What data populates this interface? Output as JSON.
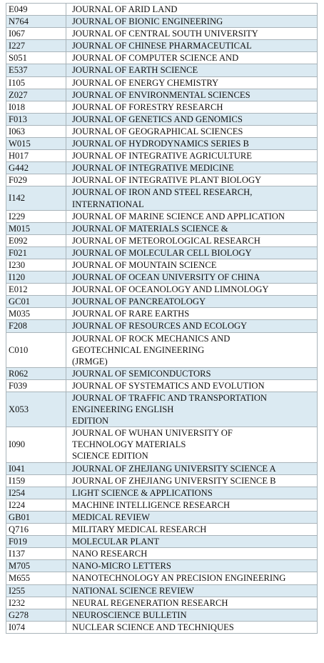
{
  "table": {
    "rows": [
      {
        "code": "E049",
        "lines": [
          "JOURNAL OF ARID LAND"
        ]
      },
      {
        "code": "N764",
        "lines": [
          "JOURNAL OF BIONIC ENGINEERING"
        ]
      },
      {
        "code": "I067",
        "lines": [
          "JOURNAL OF CENTRAL SOUTH UNIVERSITY"
        ]
      },
      {
        "code": "I227",
        "lines": [
          "JOURNAL OF CHINESE PHARMACEUTICAL"
        ]
      },
      {
        "code": "S051",
        "lines": [
          "JOURNAL OF COMPUTER SCIENCE AND"
        ]
      },
      {
        "code": "E537",
        "lines": [
          "JOURNAL OF EARTH SCIENCE"
        ]
      },
      {
        "code": "I105",
        "lines": [
          "JOURNAL OF ENERGY CHEMISTRY"
        ]
      },
      {
        "code": "Z027",
        "lines": [
          "JOURNAL OF ENVIRONMENTAL SCIENCES"
        ]
      },
      {
        "code": "I018",
        "lines": [
          "JOURNAL OF FORESTRY RESEARCH"
        ]
      },
      {
        "code": "F013",
        "lines": [
          "JOURNAL OF GENETICS AND GENOMICS"
        ]
      },
      {
        "code": "I063",
        "lines": [
          "JOURNAL OF GEOGRAPHICAL SCIENCES"
        ]
      },
      {
        "code": "W015",
        "lines": [
          "JOURNAL OF HYDRODYNAMICS SERIES B"
        ]
      },
      {
        "code": "H017",
        "lines": [
          "JOURNAL OF INTEGRATIVE AGRICULTURE"
        ]
      },
      {
        "code": "G442",
        "lines": [
          "JOURNAL OF INTEGRATIVE MEDICINE"
        ]
      },
      {
        "code": "F029",
        "lines": [
          "JOURNAL OF INTEGRATIVE PLANT BIOLOGY"
        ]
      },
      {
        "code": "I142",
        "lines": [
          "JOURNAL OF IRON AND STEEL RESEARCH,",
          "INTERNATIONAL"
        ]
      },
      {
        "code": "I229",
        "lines": [
          "JOURNAL OF MARINE SCIENCE AND APPLICATION"
        ]
      },
      {
        "code": "M015",
        "lines": [
          "JOURNAL OF MATERIALS SCIENCE &"
        ]
      },
      {
        "code": "E092",
        "lines": [
          "JOURNAL OF METEOROLOGICAL RESEARCH"
        ]
      },
      {
        "code": "F021",
        "lines": [
          "JOURNAL OF MOLECULAR CELL BIOLOGY"
        ]
      },
      {
        "code": "I230",
        "lines": [
          "JOURNAL OF MOUNTAIN SCIENCE"
        ]
      },
      {
        "code": "I120",
        "lines": [
          "JOURNAL OF OCEAN UNIVERSITY OF CHINA"
        ]
      },
      {
        "code": "E012",
        "lines": [
          "JOURNAL OF OCEANOLOGY AND LIMNOLOGY"
        ]
      },
      {
        "code": "GC01",
        "lines": [
          "JOURNAL OF PANCREATOLOGY"
        ]
      },
      {
        "code": "M035",
        "lines": [
          "JOURNAL OF RARE EARTHS"
        ]
      },
      {
        "code": "F208",
        "lines": [
          "JOURNAL OF RESOURCES AND ECOLOGY"
        ]
      },
      {
        "code": "C010",
        "lines": [
          "JOURNAL OF ROCK MECHANICS AND",
          "GEOTECHNICAL ENGINEERING",
          "(JRMGE)"
        ]
      },
      {
        "code": "R062",
        "lines": [
          "JOURNAL OF SEMICONDUCTORS"
        ]
      },
      {
        "code": "F039",
        "lines": [
          "JOURNAL OF SYSTEMATICS AND EVOLUTION"
        ]
      },
      {
        "code": "X053",
        "lines": [
          "JOURNAL OF TRAFFIC AND TRANSPORTATION",
          "ENGINEERING ENGLISH",
          "EDITION"
        ]
      },
      {
        "code": "I090",
        "lines": [
          "JOURNAL OF WUHAN UNIVERSITY OF",
          "TECHNOLOGY MATERIALS",
          "SCIENCE EDITION"
        ]
      },
      {
        "code": "I041",
        "lines": [
          "JOURNAL OF ZHEJIANG UNIVERSITY SCIENCE A"
        ]
      },
      {
        "code": "I159",
        "lines": [
          "JOURNAL OF ZHEJIANG UNIVERSITY SCIENCE B"
        ]
      },
      {
        "code": "I254",
        "lines": [
          "LIGHT SCIENCE & APPLICATIONS"
        ]
      },
      {
        "code": "I224",
        "lines": [
          "MACHINE INTELLIGENCE RESEARCH"
        ]
      },
      {
        "code": "GB01",
        "lines": [
          "MEDICAL REVIEW"
        ]
      },
      {
        "code": "Q716",
        "lines": [
          "MILITARY MEDICAL RESEARCH"
        ]
      },
      {
        "code": "F019",
        "lines": [
          "MOLECULAR PLANT"
        ]
      },
      {
        "code": "I137",
        "lines": [
          "NANO RESEARCH"
        ]
      },
      {
        "code": "M705",
        "lines": [
          "NANO-MICRO LETTERS"
        ]
      },
      {
        "code": "M655",
        "lines": [
          "NANOTECHNOLOGY AN PRECISION ENGINEERING"
        ]
      },
      {
        "code": "I255",
        "lines": [
          "NATIONAL SCIENCE REVIEW"
        ]
      },
      {
        "code": "I232",
        "lines": [
          "NEURAL REGENERATION RESEARCH"
        ]
      },
      {
        "code": "G278",
        "lines": [
          "NEUROSCIENCE BULLETIN"
        ]
      },
      {
        "code": "I074",
        "lines": [
          "NUCLEAR SCIENCE AND TECHNIQUES"
        ]
      }
    ]
  }
}
